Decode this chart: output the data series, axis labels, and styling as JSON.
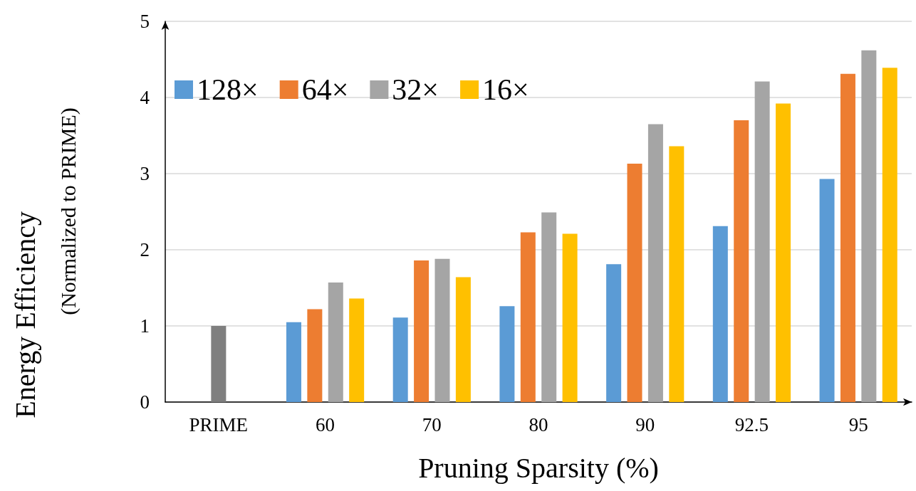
{
  "chart_data": {
    "type": "bar",
    "xlabel": "Pruning Sparsity (%)",
    "ylabel": "Energy Efficiency",
    "subtitle": "(Normalized to PRIME)",
    "categories": [
      "PRIME",
      "60",
      "70",
      "80",
      "90",
      "92.5",
      "95"
    ],
    "series": [
      {
        "name": "128×",
        "color": "#5b9bd5",
        "values": [
          null,
          1.05,
          1.11,
          1.26,
          1.81,
          2.31,
          2.93
        ]
      },
      {
        "name": "64×",
        "color": "#ed7d31",
        "values": [
          null,
          1.22,
          1.86,
          2.23,
          3.13,
          3.7,
          4.31
        ]
      },
      {
        "name": "32×",
        "color": "#a5a5a5",
        "values": [
          null,
          1.57,
          1.88,
          2.49,
          3.65,
          4.21,
          4.62
        ]
      },
      {
        "name": "16×",
        "color": "#ffc000",
        "values": [
          null,
          1.36,
          1.64,
          2.21,
          3.36,
          3.92,
          4.39
        ]
      },
      {
        "color": "#7f7f7f",
        "values": [
          1,
          null,
          null,
          null,
          null,
          null,
          null
        ]
      }
    ],
    "ylim": [
      0,
      5
    ],
    "yticks": [
      0,
      1,
      2,
      3,
      4,
      5
    ],
    "grid": "y",
    "legend": "top left"
  }
}
